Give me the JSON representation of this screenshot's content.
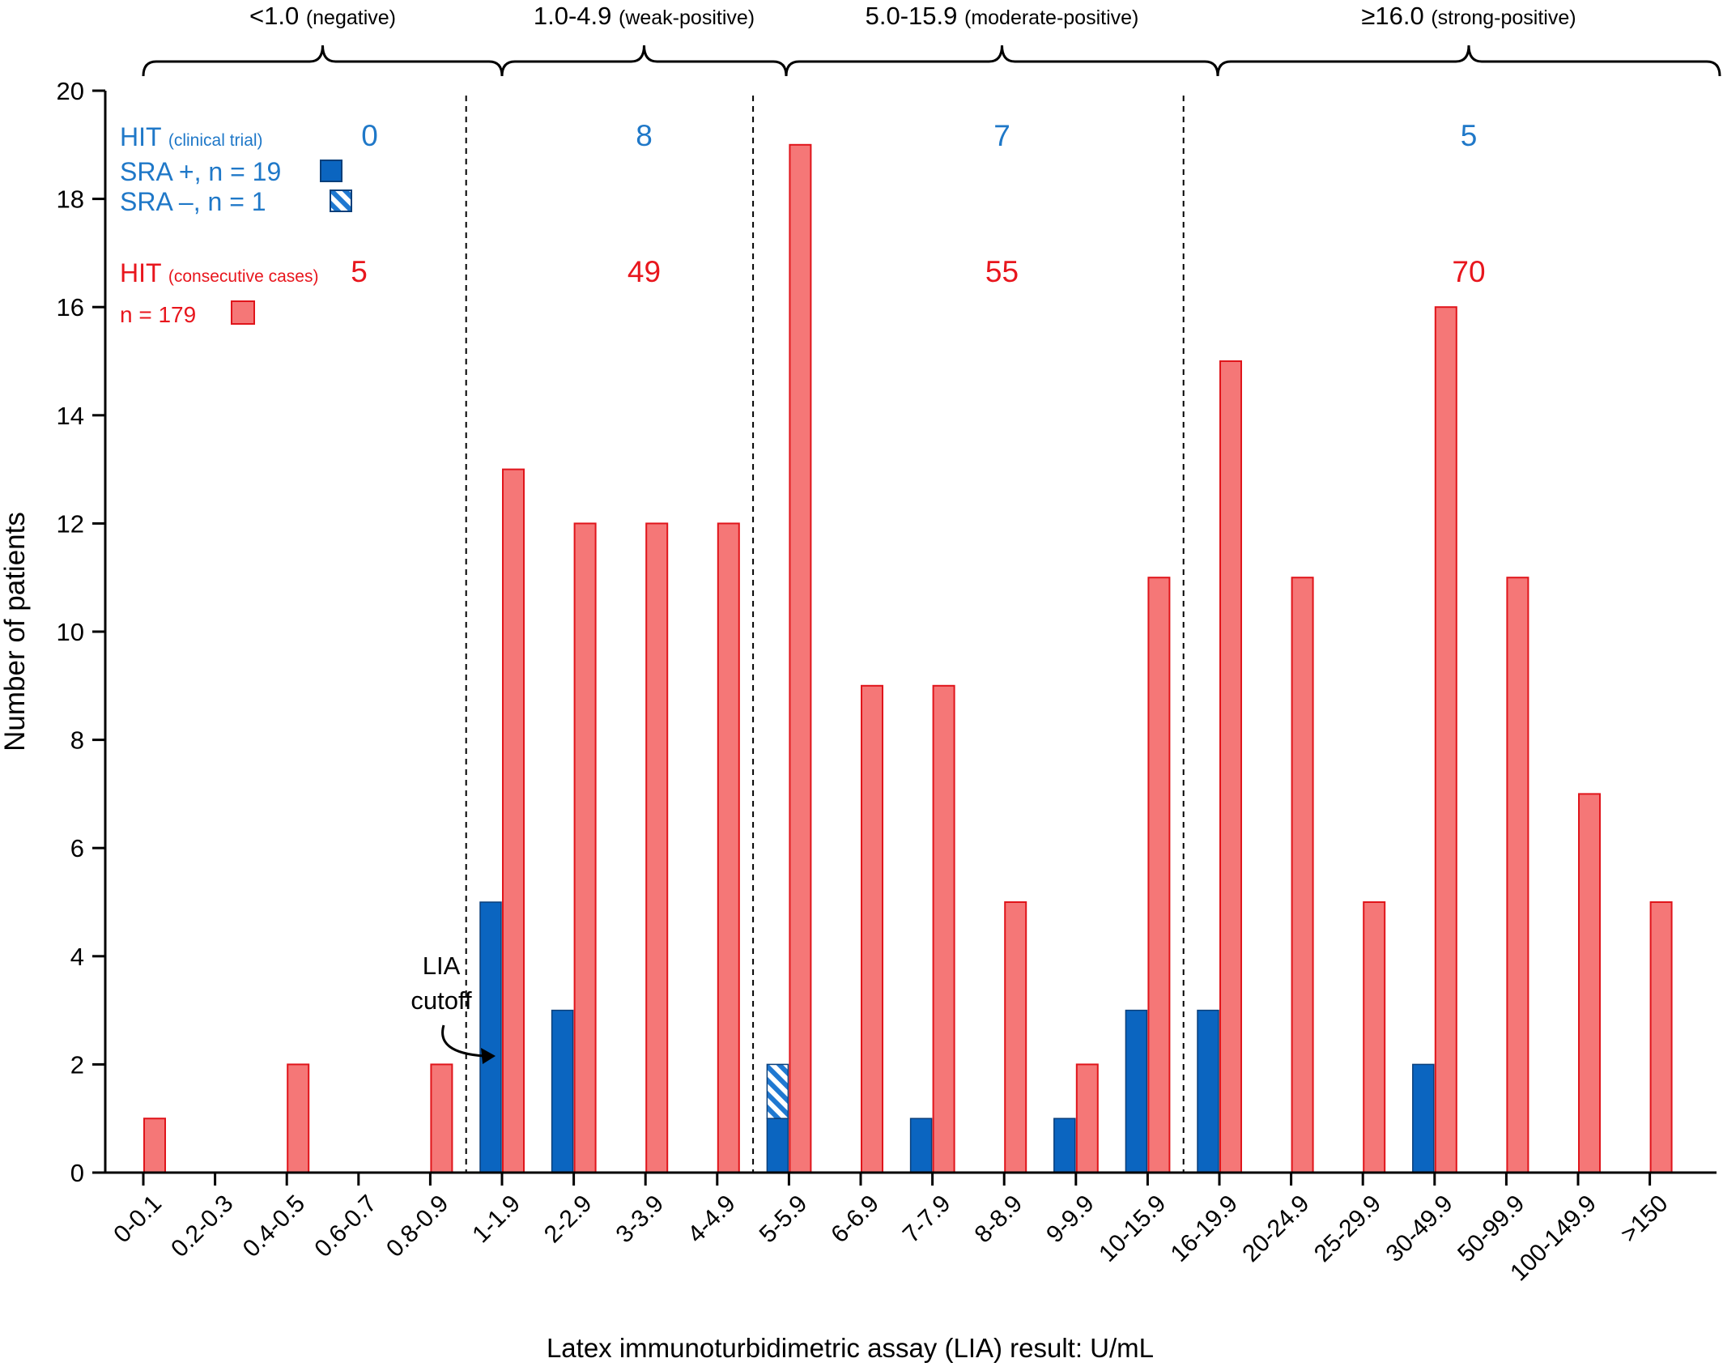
{
  "colors": {
    "sra_pos": "#0b65c0",
    "sra_neg": "#1f78d1",
    "consecutive": "#f57777",
    "consecutive_edge": "#e0151b",
    "blue_text": "#1f78c8",
    "red_text": "#e8161d",
    "axis": "#000000"
  },
  "chart_data": {
    "type": "bar",
    "categories": [
      "0-0.1",
      "0.2-0.3",
      "0.4-0.5",
      "0.6-0.7",
      "0.8-0.9",
      "1-1.9",
      "2-2.9",
      "3-3.9",
      "4-4.9",
      "5-5.9",
      "6-6.9",
      "7-7.9",
      "8-8.9",
      "9-9.9",
      "10-15.9",
      "16-19.9",
      "20-24.9",
      "25-29.9",
      "30-49.9",
      "50-99.9",
      "100-149.9",
      ">150"
    ],
    "series": [
      {
        "name": "SRA +, n = 19",
        "values": [
          0,
          0,
          0,
          0,
          0,
          5,
          3,
          0,
          0,
          1,
          0,
          1,
          0,
          1,
          3,
          3,
          0,
          0,
          2,
          0,
          0,
          0
        ]
      },
      {
        "name": "SRA –, n = 1",
        "values": [
          0,
          0,
          0,
          0,
          0,
          0,
          0,
          0,
          0,
          1,
          0,
          0,
          0,
          0,
          0,
          0,
          0,
          0,
          0,
          0,
          0,
          0
        ]
      },
      {
        "name": "n = 179",
        "values": [
          1,
          0,
          2,
          0,
          2,
          13,
          12,
          12,
          12,
          19,
          9,
          9,
          5,
          2,
          11,
          15,
          11,
          5,
          16,
          11,
          7,
          5
        ]
      }
    ],
    "stacked_series": [
      "SRA +, n = 19",
      "SRA –, n = 1"
    ],
    "xlabel": "Latex immunoturbidimetric assay (LIA) result: U/mL",
    "ylabel": "Number of patients",
    "ylim": [
      0,
      20
    ],
    "yticks": [
      "0",
      "2",
      "4",
      "6",
      "8",
      "10",
      "12",
      "14",
      "16",
      "18",
      "20"
    ],
    "grid": false,
    "legend": {
      "placement": "top-left",
      "trial_title": "HIT",
      "trial_subtitle": "(clinical trial)",
      "trial_pos_label": "SRA +, n = 19",
      "trial_neg_label": "SRA –, n = 1",
      "consec_title": "HIT",
      "consec_subtitle": "(consecutive cases)",
      "consec_label": "n = 179"
    },
    "groups": [
      {
        "range": "<1.0",
        "desc": "(negative)",
        "first": 0,
        "last": 4,
        "trial_count": "0",
        "consec_count": "5"
      },
      {
        "range": "1.0-4.9",
        "desc": "(weak-positive)",
        "first": 5,
        "last": 8,
        "trial_count": "8",
        "consec_count": "49"
      },
      {
        "range": "5.0-15.9",
        "desc": "(moderate-positive)",
        "first": 9,
        "last": 14,
        "trial_count": "7",
        "consec_count": "55"
      },
      {
        "range": "≥16.0",
        "desc": "(strong-positive)",
        "first": 15,
        "last": 21,
        "trial_count": "5",
        "consec_count": "70"
      }
    ],
    "annotation": {
      "line1": "LIA",
      "line2": "cutoff"
    }
  }
}
